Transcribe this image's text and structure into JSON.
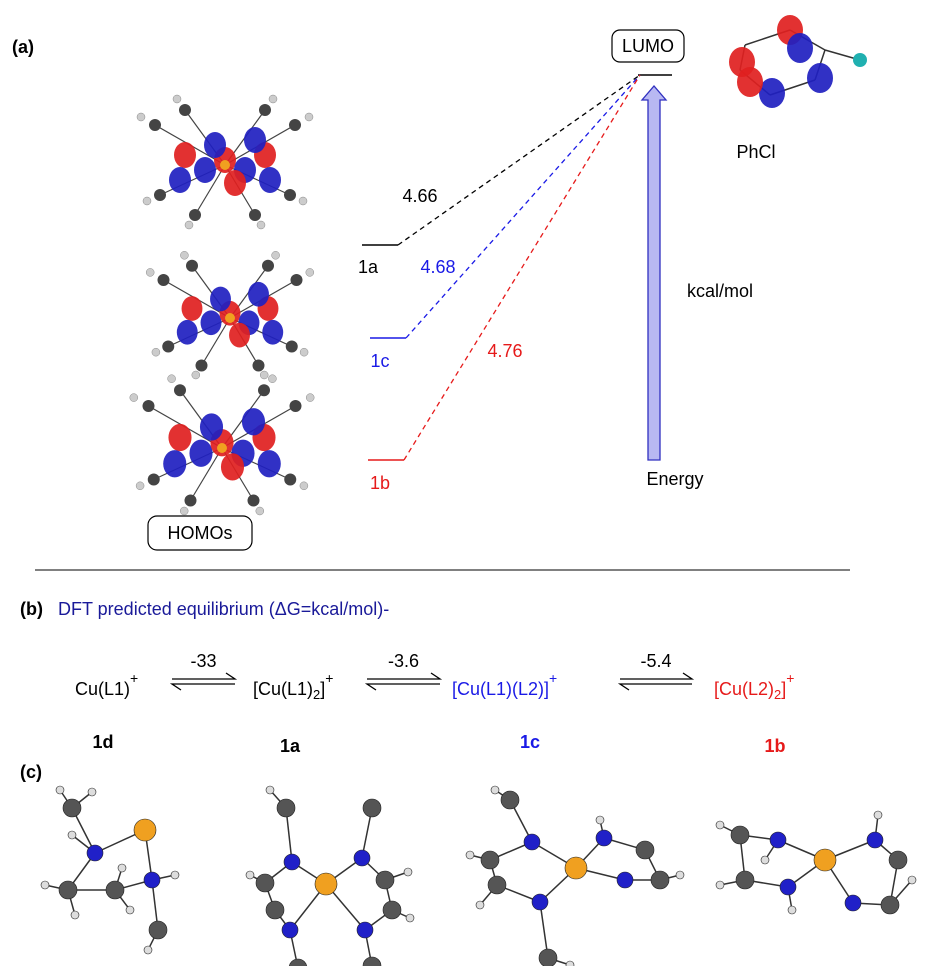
{
  "panel_a": {
    "label": "(a)",
    "lumo": "LUMO",
    "phcl": "PhCl",
    "homos": "HOMOs",
    "unit": "kcal/mol",
    "energy": "Energy",
    "levels": [
      {
        "name": "1a",
        "gap": 4.66,
        "color": "#000000"
      },
      {
        "name": "1c",
        "gap": 4.68,
        "color": "#1a1ae6"
      },
      {
        "name": "1b",
        "gap": 4.76,
        "color": "#e61a1a"
      }
    ]
  },
  "panel_b": {
    "label": "(b)",
    "title": "DFT predicted equilibrium (ΔG=kcal/mol)-",
    "title_color": "#1a1a99",
    "species": [
      {
        "base": "Cu(L1)",
        "sup": "+",
        "compound": "1d",
        "color": "#000000"
      },
      {
        "base": "[Cu(L1)",
        "sub": "2",
        "close": "]",
        "sup": "+",
        "compound": "1a",
        "color": "#000000"
      },
      {
        "base": "[Cu(L1)(L2)]",
        "sup": "+",
        "compound": "1c",
        "color": "#1a1ae6"
      },
      {
        "base": "[Cu(L2)",
        "sub": "2",
        "close": "]",
        "sup": "+",
        "compound": "1b",
        "color": "#e61a1a"
      }
    ],
    "dg": [
      -33,
      -3.6,
      -5.4
    ]
  },
  "panel_c": {
    "label": "(c)"
  }
}
